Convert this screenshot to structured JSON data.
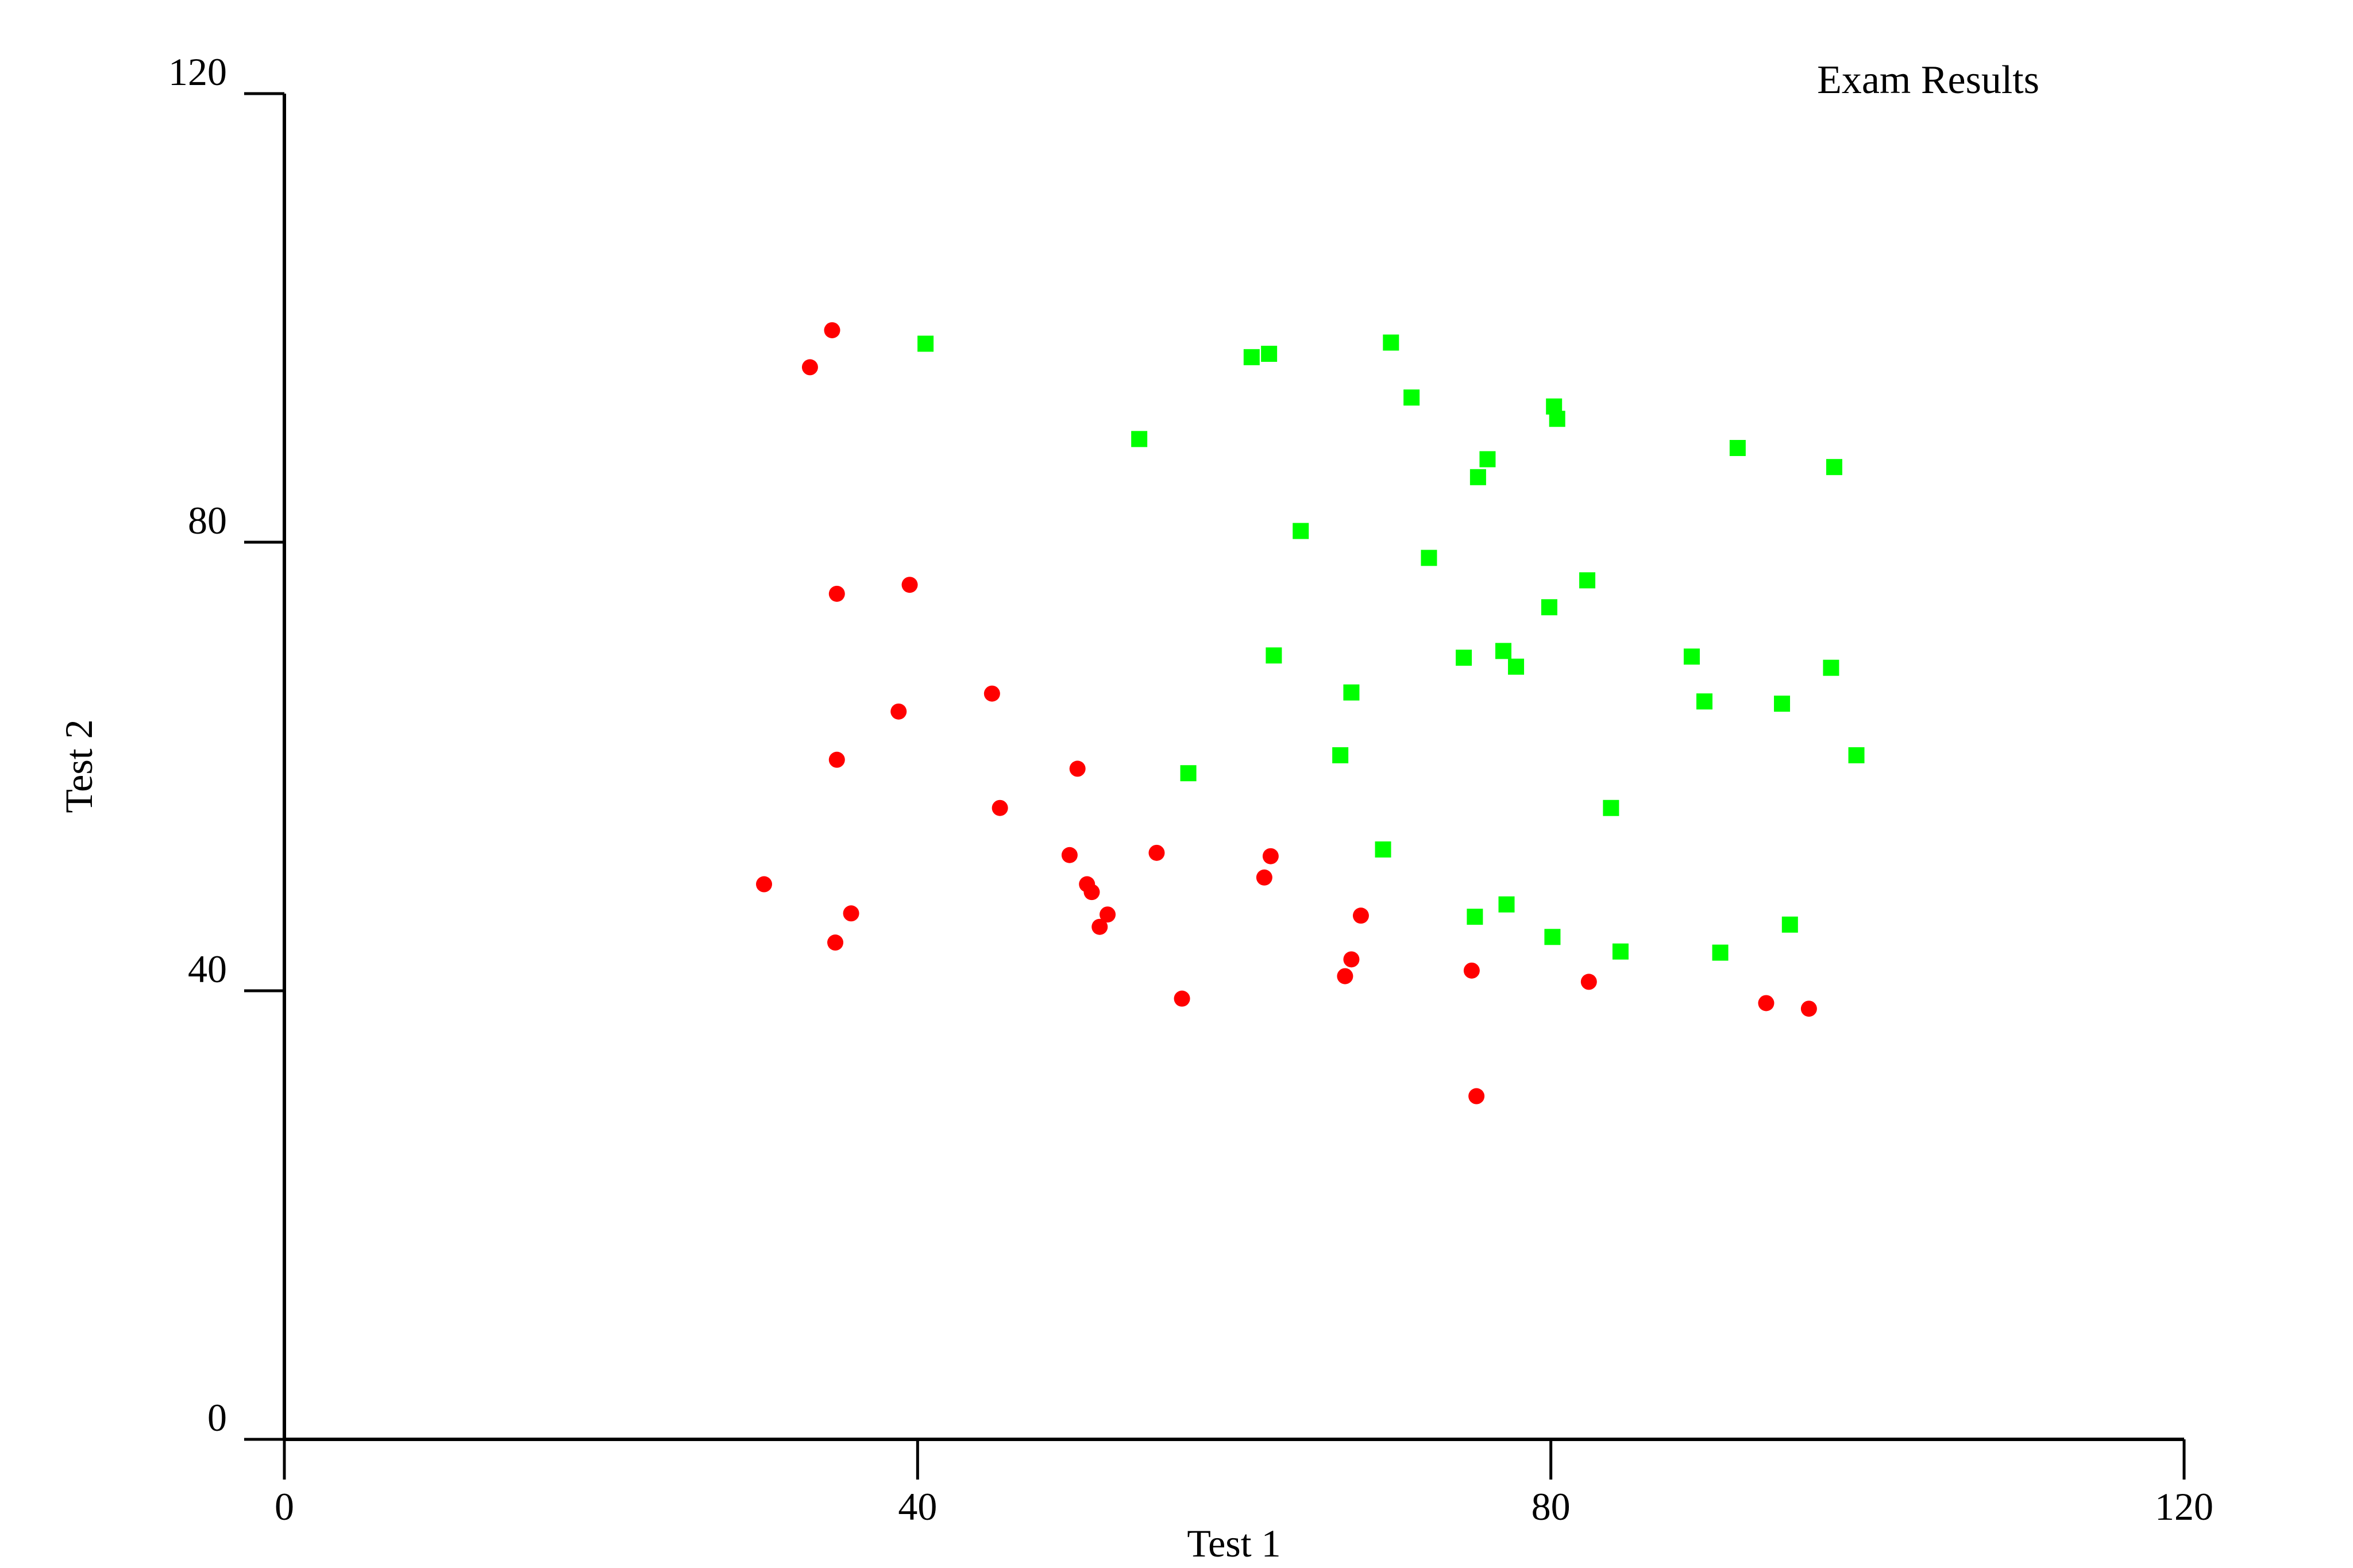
{
  "chart_data": {
    "type": "scatter",
    "title": "Exam Results",
    "xlabel": "Test 1",
    "ylabel": "Test 2",
    "xlim": [
      0,
      120
    ],
    "ylim": [
      0,
      120
    ],
    "xticks": [
      "0",
      "40",
      "80",
      "120"
    ],
    "yticks": [
      "0",
      "40",
      "80",
      "120"
    ],
    "grid": false,
    "legend": "none",
    "series": [
      {
        "marker": "circle",
        "color": "#ff0000",
        "points": [
          [
            34.6,
            98.9
          ],
          [
            33.2,
            95.6
          ],
          [
            34.9,
            75.4
          ],
          [
            39.5,
            76.2
          ],
          [
            38.8,
            64.9
          ],
          [
            44.7,
            66.5
          ],
          [
            34.9,
            60.6
          ],
          [
            45.2,
            56.3
          ],
          [
            50.1,
            59.8
          ],
          [
            30.3,
            49.5
          ],
          [
            35.8,
            46.9
          ],
          [
            34.8,
            44.3
          ],
          [
            49.6,
            52.1
          ],
          [
            50.7,
            49.5
          ],
          [
            51.0,
            48.8
          ],
          [
            51.5,
            45.7
          ],
          [
            52.0,
            46.8
          ],
          [
            55.1,
            52.3
          ],
          [
            56.7,
            39.3
          ],
          [
            61.9,
            50.1
          ],
          [
            62.3,
            52.0
          ],
          [
            67.0,
            41.3
          ],
          [
            67.4,
            42.8
          ],
          [
            68.0,
            46.7
          ],
          [
            75.0,
            41.8
          ],
          [
            75.3,
            30.6
          ],
          [
            82.4,
            40.8
          ],
          [
            93.6,
            38.9
          ],
          [
            96.3,
            38.4
          ]
        ]
      },
      {
        "marker": "square",
        "color": "#00ff00",
        "points": [
          [
            40.5,
            97.7
          ],
          [
            61.1,
            96.5
          ],
          [
            62.2,
            96.8
          ],
          [
            69.9,
            97.8
          ],
          [
            71.2,
            92.9
          ],
          [
            54.0,
            89.2
          ],
          [
            80.2,
            92.1
          ],
          [
            80.4,
            91.0
          ],
          [
            76.0,
            87.4
          ],
          [
            75.4,
            85.8
          ],
          [
            91.8,
            88.4
          ],
          [
            97.9,
            86.7
          ],
          [
            64.2,
            81.0
          ],
          [
            72.3,
            78.6
          ],
          [
            82.3,
            76.6
          ],
          [
            79.9,
            74.2
          ],
          [
            62.5,
            69.9
          ],
          [
            74.5,
            69.7
          ],
          [
            77.0,
            70.3
          ],
          [
            77.8,
            68.9
          ],
          [
            88.9,
            69.8
          ],
          [
            97.7,
            68.8
          ],
          [
            67.4,
            66.6
          ],
          [
            89.7,
            65.8
          ],
          [
            94.6,
            65.6
          ],
          [
            66.7,
            61.0
          ],
          [
            99.3,
            61.0
          ],
          [
            57.1,
            59.4
          ],
          [
            83.8,
            56.3
          ],
          [
            69.4,
            52.6
          ],
          [
            75.2,
            46.6
          ],
          [
            77.2,
            47.7
          ],
          [
            80.1,
            44.8
          ],
          [
            84.4,
            43.5
          ],
          [
            90.7,
            43.4
          ],
          [
            95.1,
            45.9
          ]
        ]
      }
    ]
  }
}
